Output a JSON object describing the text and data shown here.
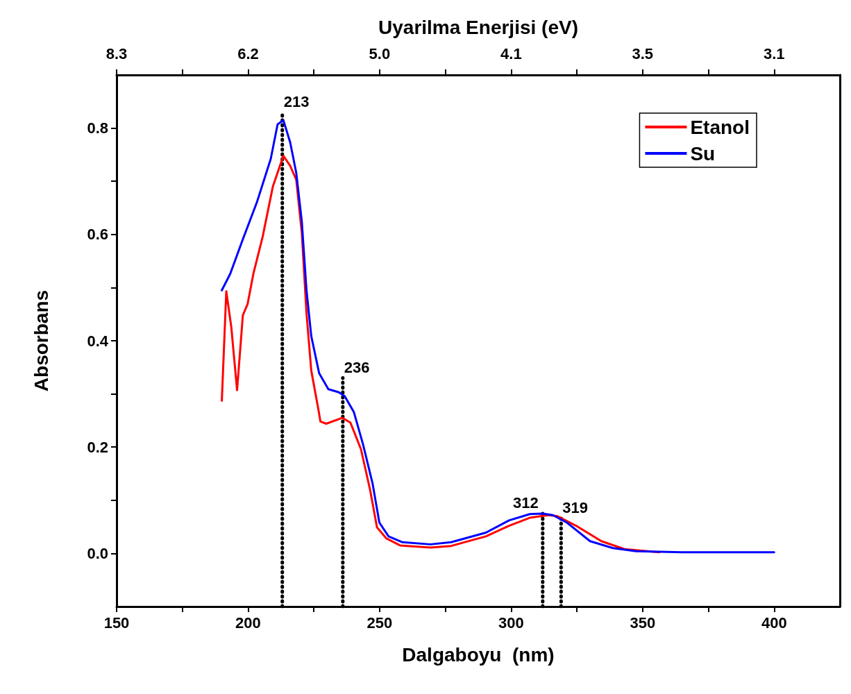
{
  "chart_data": {
    "type": "line",
    "xlabel": "Dalgaboyu  (nm)",
    "ylabel": "Absorbans",
    "x2label": "Uyarilma Enerjisi (eV)",
    "xlim": [
      150,
      425
    ],
    "ylim": [
      -0.1,
      0.9
    ],
    "xticks": [
      150,
      {
        "value": 175,
        "label": null
      },
      200,
      {
        "value": 225,
        "label": null
      },
      250,
      {
        "value": 275,
        "label": null
      },
      300,
      {
        "value": 325,
        "label": null
      },
      350,
      {
        "value": 375,
        "label": null
      },
      400
    ],
    "yticks": [
      {
        "value": 0,
        "label": "0.0"
      },
      {
        "value": 0.1,
        "label": null
      },
      {
        "value": 0.2,
        "label": "0.2"
      },
      {
        "value": 0.3,
        "label": null
      },
      {
        "value": 0.4,
        "label": "0.4"
      },
      {
        "value": 0.5,
        "label": null
      },
      {
        "value": 0.6,
        "label": "0.6"
      },
      {
        "value": 0.7,
        "label": null
      },
      {
        "value": 0.8,
        "label": "0.8"
      }
    ],
    "grid": false,
    "legend": "top right",
    "marker": "none",
    "line_style": "solid",
    "series": [
      {
        "name": "Etanol",
        "color": "#ff0000",
        "x": [
          190,
          191.7,
          193.6,
          195.8,
          198,
          199.8,
          202,
          205.5,
          209.4,
          213.4,
          216,
          218.3,
          220.4,
          222.2,
          224,
          226.6,
          227.5,
          229.7,
          235.8,
          238.9,
          242.9,
          246.4,
          249,
          252.6,
          257.8,
          269.3,
          277.2,
          290.4,
          299.2,
          307.1,
          314.1,
          317.6,
          324.7,
          334.3,
          343.1,
          356.3
        ],
        "values": [
          0.287,
          0.493,
          0.426,
          0.307,
          0.448,
          0.469,
          0.526,
          0.595,
          0.69,
          0.748,
          0.729,
          0.703,
          0.604,
          0.452,
          0.344,
          0.274,
          0.248,
          0.244,
          0.255,
          0.246,
          0.196,
          0.119,
          0.049,
          0.028,
          0.015,
          0.011,
          0.014,
          0.032,
          0.052,
          0.067,
          0.072,
          0.07,
          0.052,
          0.023,
          0.008,
          0.002
        ]
      },
      {
        "name": "Su",
        "color": "#0000ff",
        "x": [
          190,
          193.2,
          198,
          203.3,
          208.6,
          211.2,
          213.4,
          216,
          218.3,
          220.4,
          222.2,
          224,
          227,
          230.5,
          234.5,
          236.7,
          240.2,
          243.7,
          247.3,
          249.9,
          253.4,
          258.7,
          269.3,
          277.2,
          290.4,
          299.2,
          307.1,
          311.9,
          315.9,
          321.2,
          330,
          338.7,
          347.5,
          365,
          400
        ],
        "values": [
          0.495,
          0.526,
          0.591,
          0.66,
          0.742,
          0.807,
          0.815,
          0.773,
          0.716,
          0.625,
          0.495,
          0.409,
          0.339,
          0.309,
          0.303,
          0.296,
          0.266,
          0.205,
          0.132,
          0.058,
          0.032,
          0.021,
          0.017,
          0.021,
          0.039,
          0.062,
          0.074,
          0.075,
          0.072,
          0.058,
          0.023,
          0.01,
          0.004,
          0.002,
          0.002
        ]
      },
      {
        "type": "line",
        "color": "#000000",
        "line_style": "dotted",
        "x": [
          213,
          213
        ],
        "values": [
          -0.1,
          0.83
        ]
      },
      {
        "type": "line",
        "color": "#000000",
        "line_style": "dotted",
        "x": [
          236,
          236
        ],
        "values": [
          -0.1,
          0.33
        ]
      },
      {
        "type": "line",
        "color": "#000000",
        "line_style": "dotted",
        "x": [
          312,
          312
        ],
        "values": [
          -0.1,
          0.075
        ]
      },
      {
        "type": "line",
        "color": "#000000",
        "line_style": "dotted",
        "x": [
          319,
          319
        ],
        "values": [
          -0.1,
          0.066
        ]
      }
    ],
    "annotations": [
      {
        "text": "213",
        "x": 213,
        "y": 0.83
      },
      {
        "text": "236",
        "x": 236,
        "y": 0.33
      },
      {
        "text": "312",
        "x": 312,
        "y": 0.075
      },
      {
        "text": "319",
        "x": 319,
        "y": 0.066
      },
      "8.3",
      "6.2",
      "5.0",
      "4.1",
      "3.5",
      "3.1"
    ]
  }
}
